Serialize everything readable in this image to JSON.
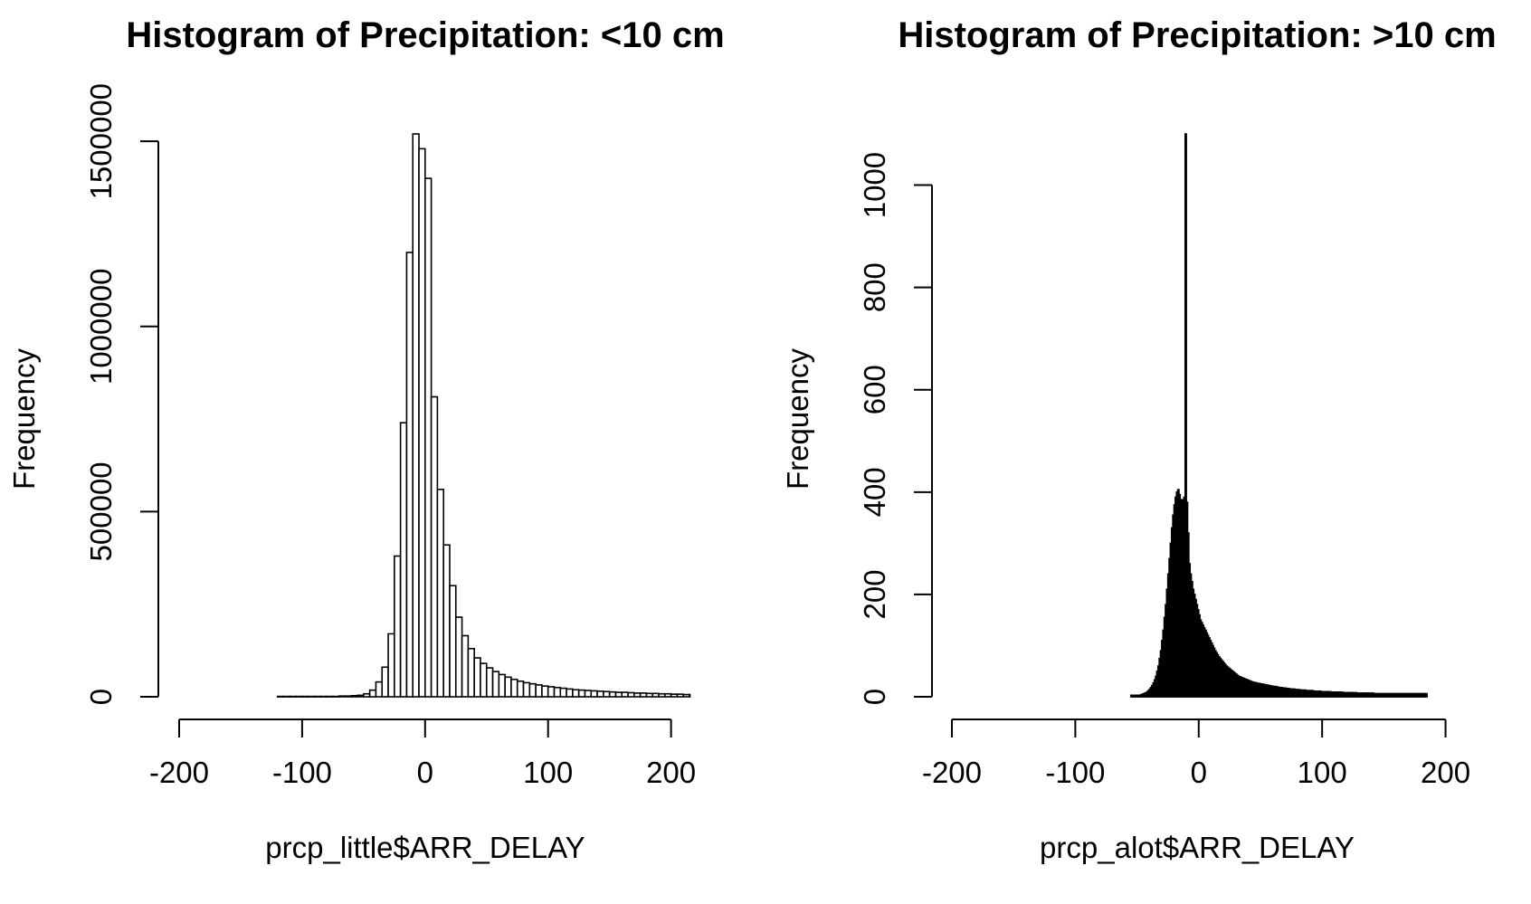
{
  "chart_data": [
    {
      "type": "bar",
      "subtype": "histogram",
      "title": "Histogram of Precipitation: <10 cm",
      "xlabel": "prcp_little$ARR_DELAY",
      "ylabel": "Frequency",
      "xlim": [
        -200,
        215
      ],
      "ylim": [
        0,
        1520000
      ],
      "xticks": [
        -200,
        -100,
        0,
        100,
        200
      ],
      "yticks": [
        0,
        500000,
        1000000,
        1500000
      ],
      "xtick_labels": [
        "-200",
        "-100",
        "0",
        "100",
        "200"
      ],
      "ytick_labels": [
        "0",
        "500000",
        "1000000",
        "1500000"
      ],
      "bin_width": 5,
      "bin_start": -120,
      "counts": [
        1000,
        1000,
        1000,
        1000,
        1000,
        1000,
        1000,
        1000,
        1000,
        1000,
        2000,
        2000,
        3000,
        4000,
        8000,
        18000,
        40000,
        80000,
        170000,
        380000,
        740000,
        1200000,
        1520000,
        1480000,
        1400000,
        810000,
        560000,
        410000,
        300000,
        215000,
        165000,
        130000,
        105000,
        90000,
        78000,
        68000,
        60000,
        53000,
        47000,
        42000,
        38000,
        35000,
        32000,
        29000,
        27000,
        25000,
        23000,
        21000,
        19000,
        18000,
        17000,
        16000,
        15000,
        14000,
        13000,
        12000,
        12000,
        11000,
        10000,
        10000,
        9000,
        9000,
        8000,
        8000,
        7000,
        7000,
        6000,
        6000,
        6000
      ],
      "fill": "#ffffff",
      "stroke": "#000000",
      "grid": false
    },
    {
      "type": "bar",
      "subtype": "histogram",
      "title": "Histogram of Precipitation: >10 cm",
      "xlabel": "prcp_alot$ARR_DELAY",
      "ylabel": "Frequency",
      "xlim": [
        -200,
        215
      ],
      "ylim": [
        0,
        1100
      ],
      "xticks": [
        -200,
        -100,
        0,
        100,
        200
      ],
      "yticks": [
        0,
        200,
        400,
        600,
        800,
        1000
      ],
      "xtick_labels": [
        "-200",
        "-100",
        "0",
        "100",
        "200"
      ],
      "ytick_labels": [
        "0",
        "200",
        "400",
        "600",
        "800",
        "1000"
      ],
      "bin_width": 1,
      "bin_start": -55,
      "counts": [
        3,
        3,
        3,
        3,
        3,
        3,
        3,
        3,
        4,
        5,
        6,
        7,
        8,
        10,
        12,
        15,
        18,
        22,
        27,
        33,
        40,
        50,
        60,
        75,
        90,
        110,
        130,
        155,
        180,
        210,
        240,
        270,
        300,
        330,
        355,
        375,
        390,
        400,
        405,
        395,
        385,
        380,
        385,
        390,
        1100,
        380,
        320,
        260,
        240,
        225,
        210,
        200,
        190,
        180,
        170,
        160,
        150,
        145,
        140,
        135,
        130,
        125,
        120,
        115,
        110,
        105,
        100,
        95,
        90,
        86,
        82,
        78,
        75,
        72,
        69,
        66,
        63,
        60,
        58,
        56,
        54,
        52,
        50,
        48,
        46,
        44,
        42,
        40,
        39,
        38,
        37,
        36,
        35,
        34,
        33,
        32,
        31,
        30,
        29,
        28,
        28,
        27,
        27,
        26,
        26,
        25,
        25,
        24,
        24,
        23,
        23,
        22,
        22,
        21,
        21,
        20,
        20,
        20,
        19,
        19,
        18,
        18,
        18,
        17,
        17,
        17,
        16,
        16,
        16,
        15,
        15,
        15,
        15,
        14,
        14,
        14,
        14,
        13,
        13,
        13,
        13,
        13,
        12,
        12,
        12,
        12,
        12,
        12,
        11,
        11,
        11,
        11,
        11,
        11,
        10,
        10,
        10,
        10,
        10,
        10,
        10,
        10,
        9,
        9,
        9,
        9,
        9,
        9,
        9,
        9,
        9,
        9,
        8,
        8,
        8,
        8,
        8,
        8,
        8,
        8,
        8,
        8,
        8,
        7,
        7,
        7,
        7,
        7,
        7,
        7,
        7,
        7,
        7,
        7,
        7,
        7,
        7,
        6,
        6,
        6,
        6,
        6,
        6,
        6,
        6,
        6,
        6,
        6,
        6,
        6,
        6,
        6,
        6,
        6,
        6,
        6,
        6,
        6,
        6,
        6,
        6,
        6,
        6,
        6,
        6,
        6,
        6,
        6,
        6,
        6,
        6,
        6,
        6,
        6,
        6,
        6,
        6,
        6,
        6,
        6
      ],
      "fill": "#ffffff",
      "stroke": "#000000",
      "grid": false
    }
  ]
}
